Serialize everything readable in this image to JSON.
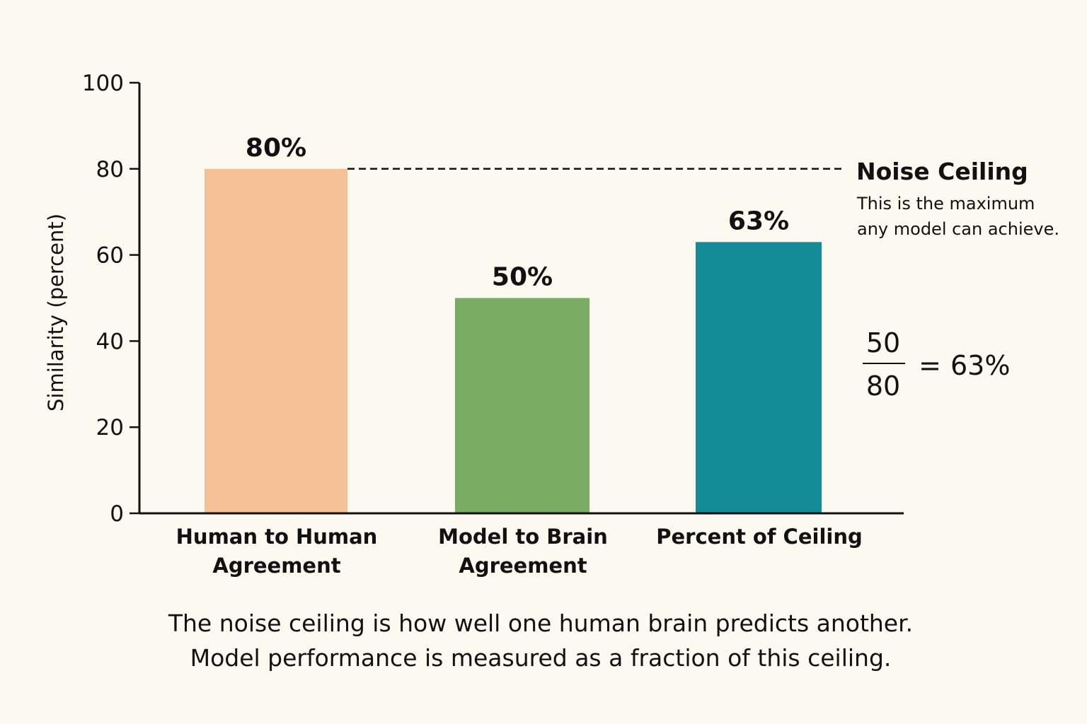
{
  "chart_data": {
    "type": "bar",
    "categories": [
      [
        "Human to Human",
        "Agreement"
      ],
      [
        "Model to Brain",
        "Agreement"
      ],
      [
        "Percent of Ceiling"
      ]
    ],
    "values": [
      80,
      50,
      63
    ],
    "value_labels": [
      "80%",
      "50%",
      "63%"
    ],
    "colors": [
      "#f5c096",
      "#78ac62",
      "#138c98"
    ],
    "ylabel": "Similarity (percent)",
    "ylim": [
      0,
      100
    ],
    "yticks": [
      0,
      20,
      40,
      60,
      80,
      100
    ],
    "grid": false,
    "reference_line": {
      "value": 80,
      "style": "dashed",
      "label": "Noise Ceiling",
      "note": [
        "This is the maximum",
        "any model can achieve."
      ]
    },
    "formula": {
      "numerator": "50",
      "denominator": "80",
      "equals": "=",
      "result": "63%"
    },
    "caption": [
      "The noise ceiling is how well one human brain predicts another.",
      "Model performance is measured as a fraction of this ceiling."
    ]
  }
}
